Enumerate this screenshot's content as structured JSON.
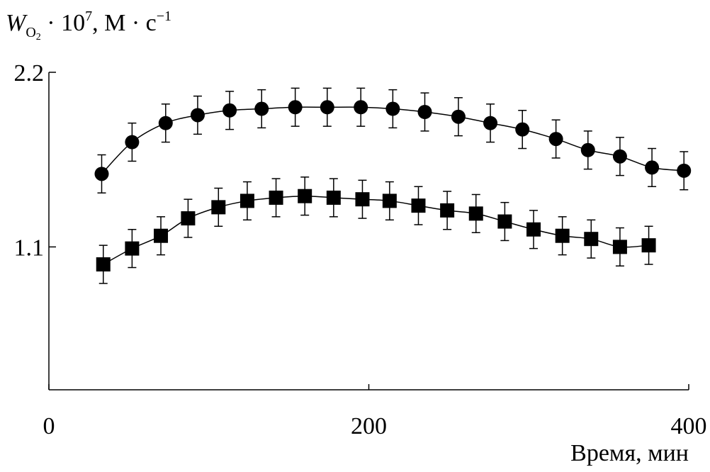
{
  "chart_data": {
    "type": "scatter",
    "title": "",
    "ylabel": {
      "symbol": "W",
      "subscript": "O",
      "subscript_index": "2",
      "middle": " · 10",
      "exponent": "7",
      "units": ", М · с",
      "units_exponent": "−1"
    },
    "xlabel": "Время, мин",
    "xlim": [
      0,
      400
    ],
    "ylim": [
      0.2,
      2.2
    ],
    "xticks": [
      0,
      200,
      400
    ],
    "xtick_labels": [
      "0",
      "200",
      "400"
    ],
    "yticks": [
      1.1,
      2.2
    ],
    "ytick_labels": [
      "1.1",
      "2.2"
    ],
    "grid": false,
    "series": [
      {
        "marker": "circle",
        "x": [
          33,
          52,
          73,
          93,
          113,
          133,
          154,
          174,
          195,
          215,
          235,
          256,
          276,
          296,
          317,
          337,
          357,
          377,
          397
        ],
        "y": [
          1.56,
          1.76,
          1.88,
          1.93,
          1.96,
          1.97,
          1.98,
          1.98,
          1.98,
          1.97,
          1.95,
          1.92,
          1.88,
          1.84,
          1.78,
          1.71,
          1.67,
          1.6,
          1.58
        ],
        "error": [
          0.12,
          0.12,
          0.12,
          0.12,
          0.12,
          0.12,
          0.12,
          0.12,
          0.12,
          0.12,
          0.12,
          0.12,
          0.12,
          0.12,
          0.12,
          0.12,
          0.12,
          0.12,
          0.12
        ]
      },
      {
        "marker": "square",
        "x": [
          34,
          52,
          70,
          87,
          106,
          124,
          142,
          160,
          178,
          196,
          213,
          231,
          249,
          267,
          285,
          303,
          321,
          339,
          357,
          375
        ],
        "y": [
          0.99,
          1.09,
          1.17,
          1.28,
          1.35,
          1.39,
          1.41,
          1.42,
          1.41,
          1.4,
          1.39,
          1.36,
          1.33,
          1.31,
          1.26,
          1.21,
          1.17,
          1.15,
          1.1,
          1.11
        ],
        "error": [
          0.12,
          0.12,
          0.12,
          0.12,
          0.12,
          0.12,
          0.12,
          0.12,
          0.12,
          0.12,
          0.12,
          0.12,
          0.12,
          0.12,
          0.12,
          0.12,
          0.12,
          0.12,
          0.12,
          0.12
        ]
      }
    ]
  }
}
